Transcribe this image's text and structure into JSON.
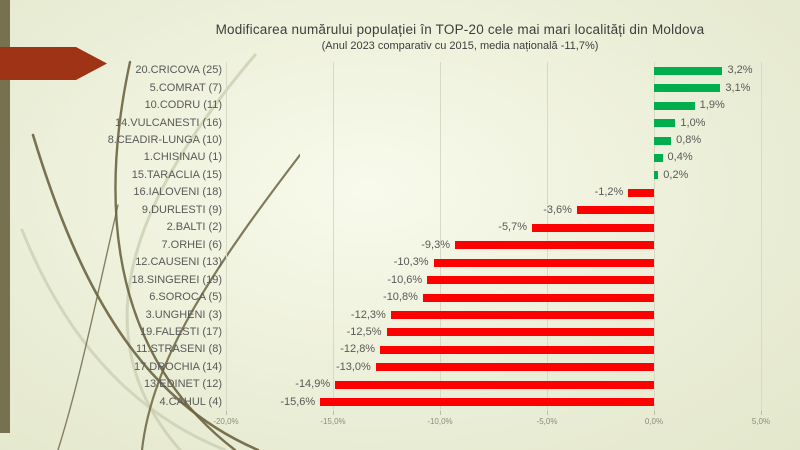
{
  "decor": {
    "sidebar_color": "#78714f",
    "arrow_color": "#9e3316",
    "swirl_dark": "#6b6443",
    "swirl_light": "#c9ccae"
  },
  "chart_data": {
    "type": "bar",
    "orientation": "horizontal",
    "title": "Modificarea numărului populației în TOP-20 cele mai mari localități din Moldova",
    "subtitle": "(Anul 2023 comparativ cu 2015, media națională -11,7%)",
    "categories": [
      "20.CRICOVA (25)",
      "5.COMRAT (7)",
      "10.CODRU (11)",
      "14.VULCANESTI (16)",
      "8.CEADIR-LUNGA (10)",
      "1.CHISINAU (1)",
      "15.TARACLIA (15)",
      "16.IALOVENI (18)",
      "9.DURLESTI (9)",
      "2.BALTI (2)",
      "7.ORHEI (6)",
      "12.CAUSENI (13)",
      "18.SINGEREI (19)",
      "6.SOROCA (5)",
      "3.UNGHENI (3)",
      "19.FALESTI (17)",
      "11.STRASENI (8)",
      "17.DROCHIA (14)",
      "13.EDINET (12)",
      "4.CAHUL (4)"
    ],
    "values": [
      3.2,
      3.1,
      1.9,
      1.0,
      0.8,
      0.4,
      0.2,
      -1.2,
      -3.6,
      -5.7,
      -9.3,
      -10.3,
      -10.6,
      -10.8,
      -12.3,
      -12.5,
      -12.8,
      -13.0,
      -14.9,
      -15.6
    ],
    "value_labels": [
      "3,2%",
      "3,1%",
      "1,9%",
      "1,0%",
      "0,8%",
      "0,4%",
      "0,2%",
      "-1,2%",
      "-3,6%",
      "-5,7%",
      "-9,3%",
      "-10,3%",
      "-10,6%",
      "-10,8%",
      "-12,3%",
      "-12,5%",
      "-12,8%",
      "-13,0%",
      "-14,9%",
      "-15,6%"
    ],
    "xlim": [
      -20,
      5
    ],
    "x_tick_values": [
      -20,
      -15,
      -10,
      -5,
      0,
      5
    ],
    "x_tick_labels": [
      "-20,0%",
      "-15,0%",
      "-10,0%",
      "-5,0%",
      "0,0%",
      "5,0%"
    ],
    "grid": true,
    "legend": false,
    "positive_color": "#00AE4E",
    "negative_color": "#FF0000",
    "data_label_color": "#595959",
    "media_nationala": "-11,7%"
  }
}
